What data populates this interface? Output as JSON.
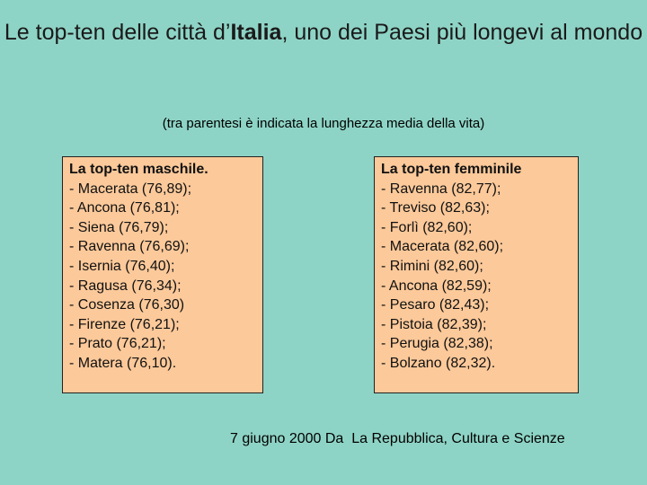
{
  "title": {
    "prefix": "Le top-ten delle città d’",
    "highlight": "Italia",
    "suffix": ", uno dei Paesi più longevi al mondo"
  },
  "subtitle": "(tra parentesi è indicata la lunghezza media della vita)",
  "male": {
    "heading": "La top-ten maschile.",
    "items": [
      "- Macerata (76,89);",
      "- Ancona (76,81);",
      "- Siena (76,79);",
      "- Ravenna (76,69);",
      "- Isernia (76,40);",
      "- Ragusa (76,34);",
      "- Cosenza (76,30)",
      "- Firenze (76,21);",
      "- Prato (76,21);",
      "- Matera (76,10)."
    ]
  },
  "female": {
    "heading": "La top-ten femminile",
    "items": [
      "- Ravenna (82,77);",
      "- Treviso (82,63);",
      "- Forlì (82,60);",
      "- Macerata (82,60);",
      "- Rimini (82,60);",
      "- Ancona (82,59);",
      "- Pesaro (82,43);",
      "- Pistoia (82,39);",
      "- Perugia (82,38);",
      "- Bolzano (82,32)."
    ]
  },
  "source": "7 giugno 2000 Da  La Repubblica, Cultura e Scienze",
  "colors": {
    "background": "#8ed4c6",
    "box": "#fcc99a"
  }
}
